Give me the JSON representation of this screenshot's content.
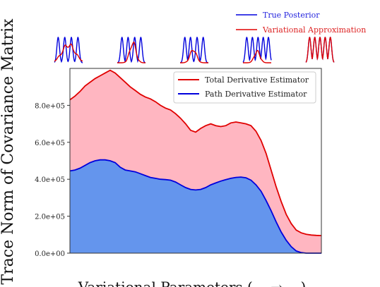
{
  "chart_data": {
    "type": "area",
    "xlabel": "Variational Parameters (... → ...)",
    "ylabel": "Trace Norm of Covariance Matrix",
    "ylim": [
      0,
      1000000
    ],
    "xlim": [
      0,
      1
    ],
    "grid": false,
    "yticks": [
      0,
      200000,
      400000,
      600000,
      800000
    ],
    "ytick_labels": [
      "0.0e+00",
      "2.0e+05",
      "4.0e+05",
      "6.0e+05",
      "8.0e+05"
    ],
    "legend_position": "top-right",
    "series": [
      {
        "name": "Total Derivative Estimator",
        "line_color": "#e00000",
        "fill_color": "#ffb6c1",
        "x": [
          0.0,
          0.02,
          0.04,
          0.06,
          0.08,
          0.1,
          0.12,
          0.14,
          0.16,
          0.18,
          0.2,
          0.22,
          0.24,
          0.26,
          0.28,
          0.3,
          0.32,
          0.34,
          0.36,
          0.38,
          0.4,
          0.42,
          0.44,
          0.46,
          0.48,
          0.5,
          0.52,
          0.54,
          0.56,
          0.58,
          0.6,
          0.62,
          0.64,
          0.66,
          0.68,
          0.7,
          0.72,
          0.74,
          0.76,
          0.78,
          0.8,
          0.82,
          0.84,
          0.86,
          0.88,
          0.9,
          0.92,
          0.94,
          0.96,
          0.98,
          1.0
        ],
        "values": [
          830000,
          850000,
          875000,
          905000,
          925000,
          945000,
          960000,
          975000,
          990000,
          975000,
          950000,
          925000,
          900000,
          880000,
          860000,
          845000,
          835000,
          820000,
          800000,
          785000,
          775000,
          755000,
          730000,
          700000,
          665000,
          655000,
          675000,
          690000,
          700000,
          690000,
          685000,
          690000,
          705000,
          710000,
          705000,
          700000,
          690000,
          660000,
          610000,
          540000,
          450000,
          360000,
          280000,
          210000,
          160000,
          125000,
          110000,
          102000,
          98000,
          96000,
          95000
        ]
      },
      {
        "name": "Path Derivative Estimator",
        "line_color": "#0000dd",
        "fill_color": "#6495ed",
        "x": [
          0.0,
          0.02,
          0.04,
          0.06,
          0.08,
          0.1,
          0.12,
          0.14,
          0.16,
          0.18,
          0.2,
          0.22,
          0.24,
          0.26,
          0.28,
          0.3,
          0.32,
          0.34,
          0.36,
          0.38,
          0.4,
          0.42,
          0.44,
          0.46,
          0.48,
          0.5,
          0.52,
          0.54,
          0.56,
          0.58,
          0.6,
          0.62,
          0.64,
          0.66,
          0.68,
          0.7,
          0.72,
          0.74,
          0.76,
          0.78,
          0.8,
          0.82,
          0.84,
          0.86,
          0.88,
          0.9,
          0.92,
          0.94,
          0.96,
          0.98,
          1.0
        ],
        "values": [
          445000,
          450000,
          460000,
          475000,
          490000,
          500000,
          505000,
          505000,
          500000,
          490000,
          465000,
          450000,
          445000,
          440000,
          430000,
          420000,
          410000,
          405000,
          400000,
          398000,
          395000,
          385000,
          370000,
          355000,
          345000,
          342000,
          345000,
          355000,
          370000,
          380000,
          390000,
          398000,
          405000,
          410000,
          412000,
          408000,
          395000,
          370000,
          335000,
          285000,
          230000,
          170000,
          115000,
          70000,
          35000,
          12000,
          3000,
          0,
          0,
          0,
          0
        ]
      }
    ],
    "top_legend": [
      {
        "label": "True Posterior",
        "color": "#0000dd"
      },
      {
        "label": "Variational Approximation",
        "color": "#e00000"
      }
    ],
    "insets": [
      {
        "true_peaks": [
          -2.2,
          -0.8,
          0.6,
          2.0
        ],
        "approx_center": 0.0,
        "approx_width": 2.8,
        "approx_height": 0.8
      },
      {
        "true_peaks": [
          -2.0,
          -0.7,
          0.7,
          2.0
        ],
        "approx_center": 0.3,
        "approx_width": 1.3,
        "approx_height": 0.9
      },
      {
        "true_peaks": [
          -2.0,
          -0.8,
          0.6,
          1.9
        ],
        "approx_center": -0.2,
        "approx_width": 1.3,
        "approx_height": 0.6
      },
      {
        "true_peaks": [
          -2.2,
          -1.0,
          0.2,
          1.3,
          2.4
        ],
        "approx_center": 0.0,
        "approx_width": 1.2,
        "approx_height": 0.5
      },
      {
        "true_peaks": [
          -2.2,
          -1.1,
          0.0,
          1.1,
          2.2
        ],
        "approx_center": 0.0,
        "approx_width": 0.0,
        "approx_height": 0.0
      }
    ]
  }
}
